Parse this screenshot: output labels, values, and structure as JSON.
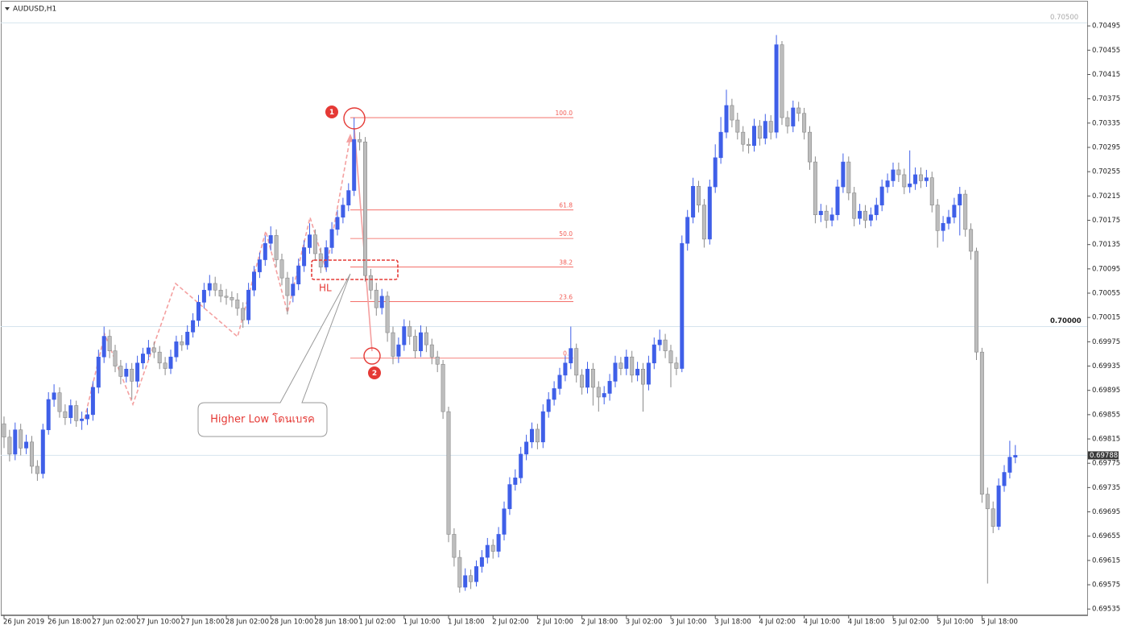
{
  "chart_data": {
    "type": "candlestick",
    "title": "AUDUSD,H1",
    "up_color": "#3f5fe8",
    "down_color": "#bdbdbd",
    "fibo_color": "#f25c54",
    "open": [
      0.6984,
      0.69818,
      0.6979,
      0.6983,
      0.698,
      0.6981,
      0.6977,
      0.69758,
      0.6983,
      0.6988,
      0.69891,
      0.6986,
      0.6985,
      0.6987,
      0.69845,
      0.69848,
      0.69855,
      0.699,
      0.6995,
      0.69984,
      0.6996,
      0.69935,
      0.69918,
      0.6993,
      0.6991,
      0.6994,
      0.69955,
      0.69965,
      0.69958,
      0.6994,
      0.69931,
      0.6995,
      0.69975,
      0.6997,
      0.69991,
      0.7001,
      0.7004,
      0.7006,
      0.70071,
      0.7006,
      0.7005,
      0.70048,
      0.70044,
      0.7003,
      0.70011,
      0.7006,
      0.7009,
      0.7011,
      0.70137,
      0.7015,
      0.7011,
      0.7008,
      0.70051,
      0.7007,
      0.701,
      0.7013,
      0.70151,
      0.7012,
      0.70098,
      0.7013,
      0.7016,
      0.7018,
      0.702,
      0.70224,
      0.70308,
      0.70304,
      0.70084,
      0.7006,
      0.70031,
      0.7005,
      0.6999,
      0.69951,
      0.6997,
      0.7,
      0.69984,
      0.6996,
      0.6999,
      0.6997,
      0.6995,
      0.69938,
      0.6986,
      0.69658,
      0.6962,
      0.69571,
      0.6959,
      0.6958,
      0.69605,
      0.6962,
      0.6964,
      0.6963,
      0.69658,
      0.697,
      0.6974,
      0.69751,
      0.6979,
      0.6981,
      0.69831,
      0.6981,
      0.6986,
      0.6988,
      0.69898,
      0.6992,
      0.6994,
      0.69964,
      0.6992,
      0.699,
      0.6993,
      0.699,
      0.69884,
      0.6989,
      0.6991,
      0.6994,
      0.69931,
      0.6995,
      0.6992,
      0.6993,
      0.69905,
      0.6994,
      0.6997,
      0.69978,
      0.6996,
      0.6994,
      0.69931,
      0.70137,
      0.7018,
      0.70231,
      0.702,
      0.70144,
      0.7023,
      0.70278,
      0.7032,
      0.70364,
      0.7034,
      0.7032,
      0.703,
      0.70298,
      0.7033,
      0.7031,
      0.70338,
      0.7032,
      0.70464,
      0.70344,
      0.7033,
      0.7036,
      0.70351,
      0.7032,
      0.70271,
      0.70184,
      0.7019,
      0.70175,
      0.70184,
      0.7023,
      0.70271,
      0.7022,
      0.70178,
      0.7019,
      0.70175,
      0.70184,
      0.702,
      0.7023,
      0.7024,
      0.70258,
      0.7025,
      0.7023,
      0.70235,
      0.7025,
      0.7024,
      0.70245,
      0.702,
      0.70158,
      0.7017,
      0.7018,
      0.702,
      0.70218,
      0.7016,
      0.70124,
      0.69958,
      0.69724,
      0.697,
      0.69671,
      0.69738,
      0.6976,
      0.69785
    ],
    "high": [
      0.69852,
      0.6983,
      0.69842,
      0.6984,
      0.69822,
      0.6982,
      0.6978,
      0.6984,
      0.69892,
      0.69905,
      0.699,
      0.69872,
      0.6988,
      0.69878,
      0.6986,
      0.69866,
      0.6991,
      0.69962,
      0.7,
      0.69995,
      0.6997,
      0.69945,
      0.6994,
      0.6994,
      0.69952,
      0.69965,
      0.69978,
      0.69975,
      0.69968,
      0.6995,
      0.69962,
      0.69985,
      0.69986,
      0.70002,
      0.70022,
      0.70052,
      0.70072,
      0.70085,
      0.70082,
      0.7007,
      0.70062,
      0.70058,
      0.70055,
      0.7004,
      0.70072,
      0.701,
      0.70122,
      0.7015,
      0.70165,
      0.7016,
      0.7012,
      0.7009,
      0.70082,
      0.70112,
      0.70142,
      0.7017,
      0.7016,
      0.7013,
      0.70142,
      0.70172,
      0.70192,
      0.70212,
      0.70236,
      0.70344,
      0.7032,
      0.70312,
      0.70095,
      0.70072,
      0.70062,
      0.70058,
      0.7,
      0.69982,
      0.70012,
      0.7001,
      0.69995,
      0.70002,
      0.7,
      0.6998,
      0.6996,
      0.69945,
      0.69868,
      0.69668,
      0.69632,
      0.69602,
      0.696,
      0.69615,
      0.69632,
      0.69652,
      0.6965,
      0.6967,
      0.69712,
      0.69752,
      0.69765,
      0.69802,
      0.69822,
      0.69842,
      0.6984,
      0.69872,
      0.69892,
      0.6991,
      0.69932,
      0.69952,
      0.7,
      0.69972,
      0.6993,
      0.69942,
      0.6994,
      0.6991,
      0.69902,
      0.69922,
      0.69952,
      0.6995,
      0.69962,
      0.6996,
      0.69942,
      0.6994,
      0.69952,
      0.69982,
      0.69995,
      0.69988,
      0.6997,
      0.6995,
      0.7015,
      0.70192,
      0.70245,
      0.7024,
      0.7021,
      0.70242,
      0.703,
      0.70345,
      0.7039,
      0.70375,
      0.70352,
      0.7033,
      0.7031,
      0.70342,
      0.7034,
      0.7035,
      0.70348,
      0.7048,
      0.7047,
      0.70355,
      0.70372,
      0.7037,
      0.7036,
      0.7033,
      0.7028,
      0.70202,
      0.702,
      0.70196,
      0.70242,
      0.70285,
      0.7028,
      0.7023,
      0.70202,
      0.702,
      0.70196,
      0.70212,
      0.70242,
      0.70252,
      0.7027,
      0.7027,
      0.7026,
      0.7029,
      0.70262,
      0.70262,
      0.70258,
      0.70255,
      0.7021,
      0.70182,
      0.70192,
      0.70212,
      0.7023,
      0.70225,
      0.7017,
      0.7013,
      0.69965,
      0.69735,
      0.69712,
      0.6975,
      0.69772,
      0.69812,
      0.69805
    ],
    "low": [
      0.698,
      0.69778,
      0.6978,
      0.69788,
      0.6979,
      0.69758,
      0.69746,
      0.6975,
      0.69822,
      0.69868,
      0.6985,
      0.69838,
      0.6984,
      0.69835,
      0.6983,
      0.69838,
      0.69845,
      0.6989,
      0.6994,
      0.69948,
      0.69925,
      0.69905,
      0.69908,
      0.6988,
      0.699,
      0.6993,
      0.69945,
      0.69948,
      0.6993,
      0.6992,
      0.69922,
      0.69942,
      0.6996,
      0.69962,
      0.69982,
      0.7,
      0.7003,
      0.7005,
      0.7005,
      0.7004,
      0.70036,
      0.70032,
      0.70018,
      0.69998,
      0.70004,
      0.7005,
      0.7008,
      0.701,
      0.70125,
      0.70098,
      0.70068,
      0.7002,
      0.7004,
      0.7006,
      0.7009,
      0.7012,
      0.70108,
      0.70088,
      0.7009,
      0.7012,
      0.7015,
      0.7017,
      0.7019,
      0.70215,
      0.7029,
      0.70074,
      0.70045,
      0.70018,
      0.7002,
      0.69975,
      0.69938,
      0.6994,
      0.6996,
      0.6997,
      0.69948,
      0.6995,
      0.69958,
      0.69938,
      0.69925,
      0.69848,
      0.69645,
      0.69605,
      0.69562,
      0.69565,
      0.69568,
      0.69572,
      0.69595,
      0.6961,
      0.69618,
      0.6962,
      0.69648,
      0.6969,
      0.6973,
      0.69742,
      0.6978,
      0.698,
      0.69798,
      0.698,
      0.6985,
      0.6987,
      0.69888,
      0.6991,
      0.6993,
      0.69908,
      0.69888,
      0.6989,
      0.6987,
      0.6986,
      0.69872,
      0.69878,
      0.699,
      0.6992,
      0.6992,
      0.69908,
      0.6991,
      0.6986,
      0.69895,
      0.6993,
      0.6996,
      0.69948,
      0.699,
      0.6992,
      0.69925,
      0.70125,
      0.7017,
      0.70188,
      0.7013,
      0.70135,
      0.7022,
      0.70268,
      0.7031,
      0.70328,
      0.70308,
      0.70288,
      0.70285,
      0.70288,
      0.70298,
      0.703,
      0.70308,
      0.7031,
      0.70332,
      0.70318,
      0.7032,
      0.70338,
      0.70308,
      0.70258,
      0.7017,
      0.70172,
      0.70162,
      0.70165,
      0.70175,
      0.7022,
      0.70208,
      0.70165,
      0.70168,
      0.70162,
      0.70165,
      0.70175,
      0.7019,
      0.7022,
      0.7023,
      0.70238,
      0.70218,
      0.7022,
      0.70225,
      0.70228,
      0.7023,
      0.70188,
      0.7013,
      0.7014,
      0.7016,
      0.7017,
      0.7015,
      0.70148,
      0.7011,
      0.69945,
      0.6971,
      0.69577,
      0.6966,
      0.69665,
      0.69728,
      0.6975,
      0.69775
    ],
    "close": [
      0.69818,
      0.6979,
      0.6983,
      0.698,
      0.6981,
      0.6977,
      0.69758,
      0.6983,
      0.6988,
      0.69891,
      0.6986,
      0.6985,
      0.6987,
      0.69845,
      0.69848,
      0.69855,
      0.699,
      0.6995,
      0.69984,
      0.6996,
      0.69935,
      0.69918,
      0.6993,
      0.6991,
      0.6994,
      0.69955,
      0.69965,
      0.69958,
      0.6994,
      0.69931,
      0.6995,
      0.69975,
      0.6997,
      0.69991,
      0.7001,
      0.7004,
      0.7006,
      0.70071,
      0.7006,
      0.7005,
      0.70048,
      0.70044,
      0.7003,
      0.70011,
      0.7006,
      0.7009,
      0.7011,
      0.70137,
      0.7015,
      0.7011,
      0.7008,
      0.70051,
      0.7007,
      0.701,
      0.7013,
      0.70151,
      0.7012,
      0.70098,
      0.7013,
      0.7016,
      0.7018,
      0.702,
      0.70224,
      0.70308,
      0.70304,
      0.70084,
      0.7006,
      0.70031,
      0.7005,
      0.6999,
      0.69951,
      0.6997,
      0.7,
      0.69984,
      0.6996,
      0.6999,
      0.6997,
      0.6995,
      0.69938,
      0.6986,
      0.69658,
      0.6962,
      0.69571,
      0.6959,
      0.6958,
      0.69605,
      0.6962,
      0.6964,
      0.6963,
      0.69658,
      0.697,
      0.6974,
      0.69751,
      0.6979,
      0.6981,
      0.69831,
      0.6981,
      0.6986,
      0.6988,
      0.69898,
      0.6992,
      0.6994,
      0.69964,
      0.6992,
      0.699,
      0.6993,
      0.699,
      0.69884,
      0.6989,
      0.6991,
      0.6994,
      0.69931,
      0.6995,
      0.6992,
      0.6993,
      0.69905,
      0.6994,
      0.6997,
      0.69978,
      0.6996,
      0.6994,
      0.69931,
      0.70137,
      0.7018,
      0.70231,
      0.702,
      0.70144,
      0.7023,
      0.70278,
      0.7032,
      0.70364,
      0.7034,
      0.7032,
      0.703,
      0.70298,
      0.7033,
      0.7031,
      0.70338,
      0.7032,
      0.70464,
      0.70344,
      0.7033,
      0.7036,
      0.70351,
      0.7032,
      0.70271,
      0.70184,
      0.7019,
      0.70175,
      0.70184,
      0.7023,
      0.70271,
      0.7022,
      0.70178,
      0.7019,
      0.70175,
      0.70184,
      0.702,
      0.7023,
      0.7024,
      0.70258,
      0.7025,
      0.7023,
      0.70235,
      0.7025,
      0.7024,
      0.70245,
      0.702,
      0.70158,
      0.7017,
      0.7018,
      0.702,
      0.70218,
      0.7016,
      0.70124,
      0.69958,
      0.69724,
      0.697,
      0.69671,
      0.69738,
      0.6976,
      0.69785,
      0.69788
    ],
    "xticks": [
      {
        "value": 0,
        "label": "26 Jun 2019"
      },
      {
        "value": 8,
        "label": "26 Jun 18:00"
      },
      {
        "value": 16,
        "label": "27 Jun 02:00"
      },
      {
        "value": 24,
        "label": "27 Jun 10:00"
      },
      {
        "value": 32,
        "label": "27 Jun 18:00"
      },
      {
        "value": 40,
        "label": "28 Jun 02:00"
      },
      {
        "value": 48,
        "label": "28 Jun 10:00"
      },
      {
        "value": 56,
        "label": "28 Jun 18:00"
      },
      {
        "value": 64,
        "label": "1 Jul 02:00"
      },
      {
        "value": 72,
        "label": "1 Jul 10:00"
      },
      {
        "value": 80,
        "label": "1 Jul 18:00"
      },
      {
        "value": 88,
        "label": "2 Jul 02:00"
      },
      {
        "value": 96,
        "label": "2 Jul 10:00"
      },
      {
        "value": 104,
        "label": "2 Jul 18:00"
      },
      {
        "value": 112,
        "label": "3 Jul 02:00"
      },
      {
        "value": 120,
        "label": "3 Jul 10:00"
      },
      {
        "value": 128,
        "label": "3 Jul 18:00"
      },
      {
        "value": 136,
        "label": "4 Jul 02:00"
      },
      {
        "value": 144,
        "label": "4 Jul 10:00"
      },
      {
        "value": 152,
        "label": "4 Jul 18:00"
      },
      {
        "value": 160,
        "label": "5 Jul 02:00"
      },
      {
        "value": 168,
        "label": "5 Jul 10:00"
      },
      {
        "value": 176,
        "label": "5 Jul 18:00"
      }
    ],
    "ylim": [
      0.69526,
      0.70531
    ],
    "yticks": [
      0.70495,
      0.70455,
      0.70415,
      0.70375,
      0.70335,
      0.70295,
      0.70255,
      0.70215,
      0.70175,
      0.70135,
      0.70095,
      0.70055,
      0.70015,
      0.69975,
      0.69935,
      0.69895,
      0.69855,
      0.69815,
      0.69775,
      0.69735,
      0.69695,
      0.69655,
      0.69615,
      0.69575,
      0.69535
    ],
    "levels": [
      {
        "value": 0.705,
        "label": "0.70500"
      },
      {
        "value": 0.7,
        "label": "0.70000"
      }
    ],
    "current_price": {
      "value": 0.69788,
      "label": "0.69788"
    },
    "fibo_levels": [
      {
        "label": "100.0",
        "price": 0.70344
      },
      {
        "label": "61.8",
        "price": 0.70192
      },
      {
        "label": "50.0",
        "price": 0.70145
      },
      {
        "label": "38.2",
        "price": 0.70098
      },
      {
        "label": "23.6",
        "price": 0.70041
      },
      {
        "label": "0.0",
        "price": 0.69948
      }
    ],
    "annotations": {
      "marker_1": "1",
      "marker_2": "2",
      "hl": "HL",
      "callout": "Higher Low โดนเบรค"
    }
  }
}
